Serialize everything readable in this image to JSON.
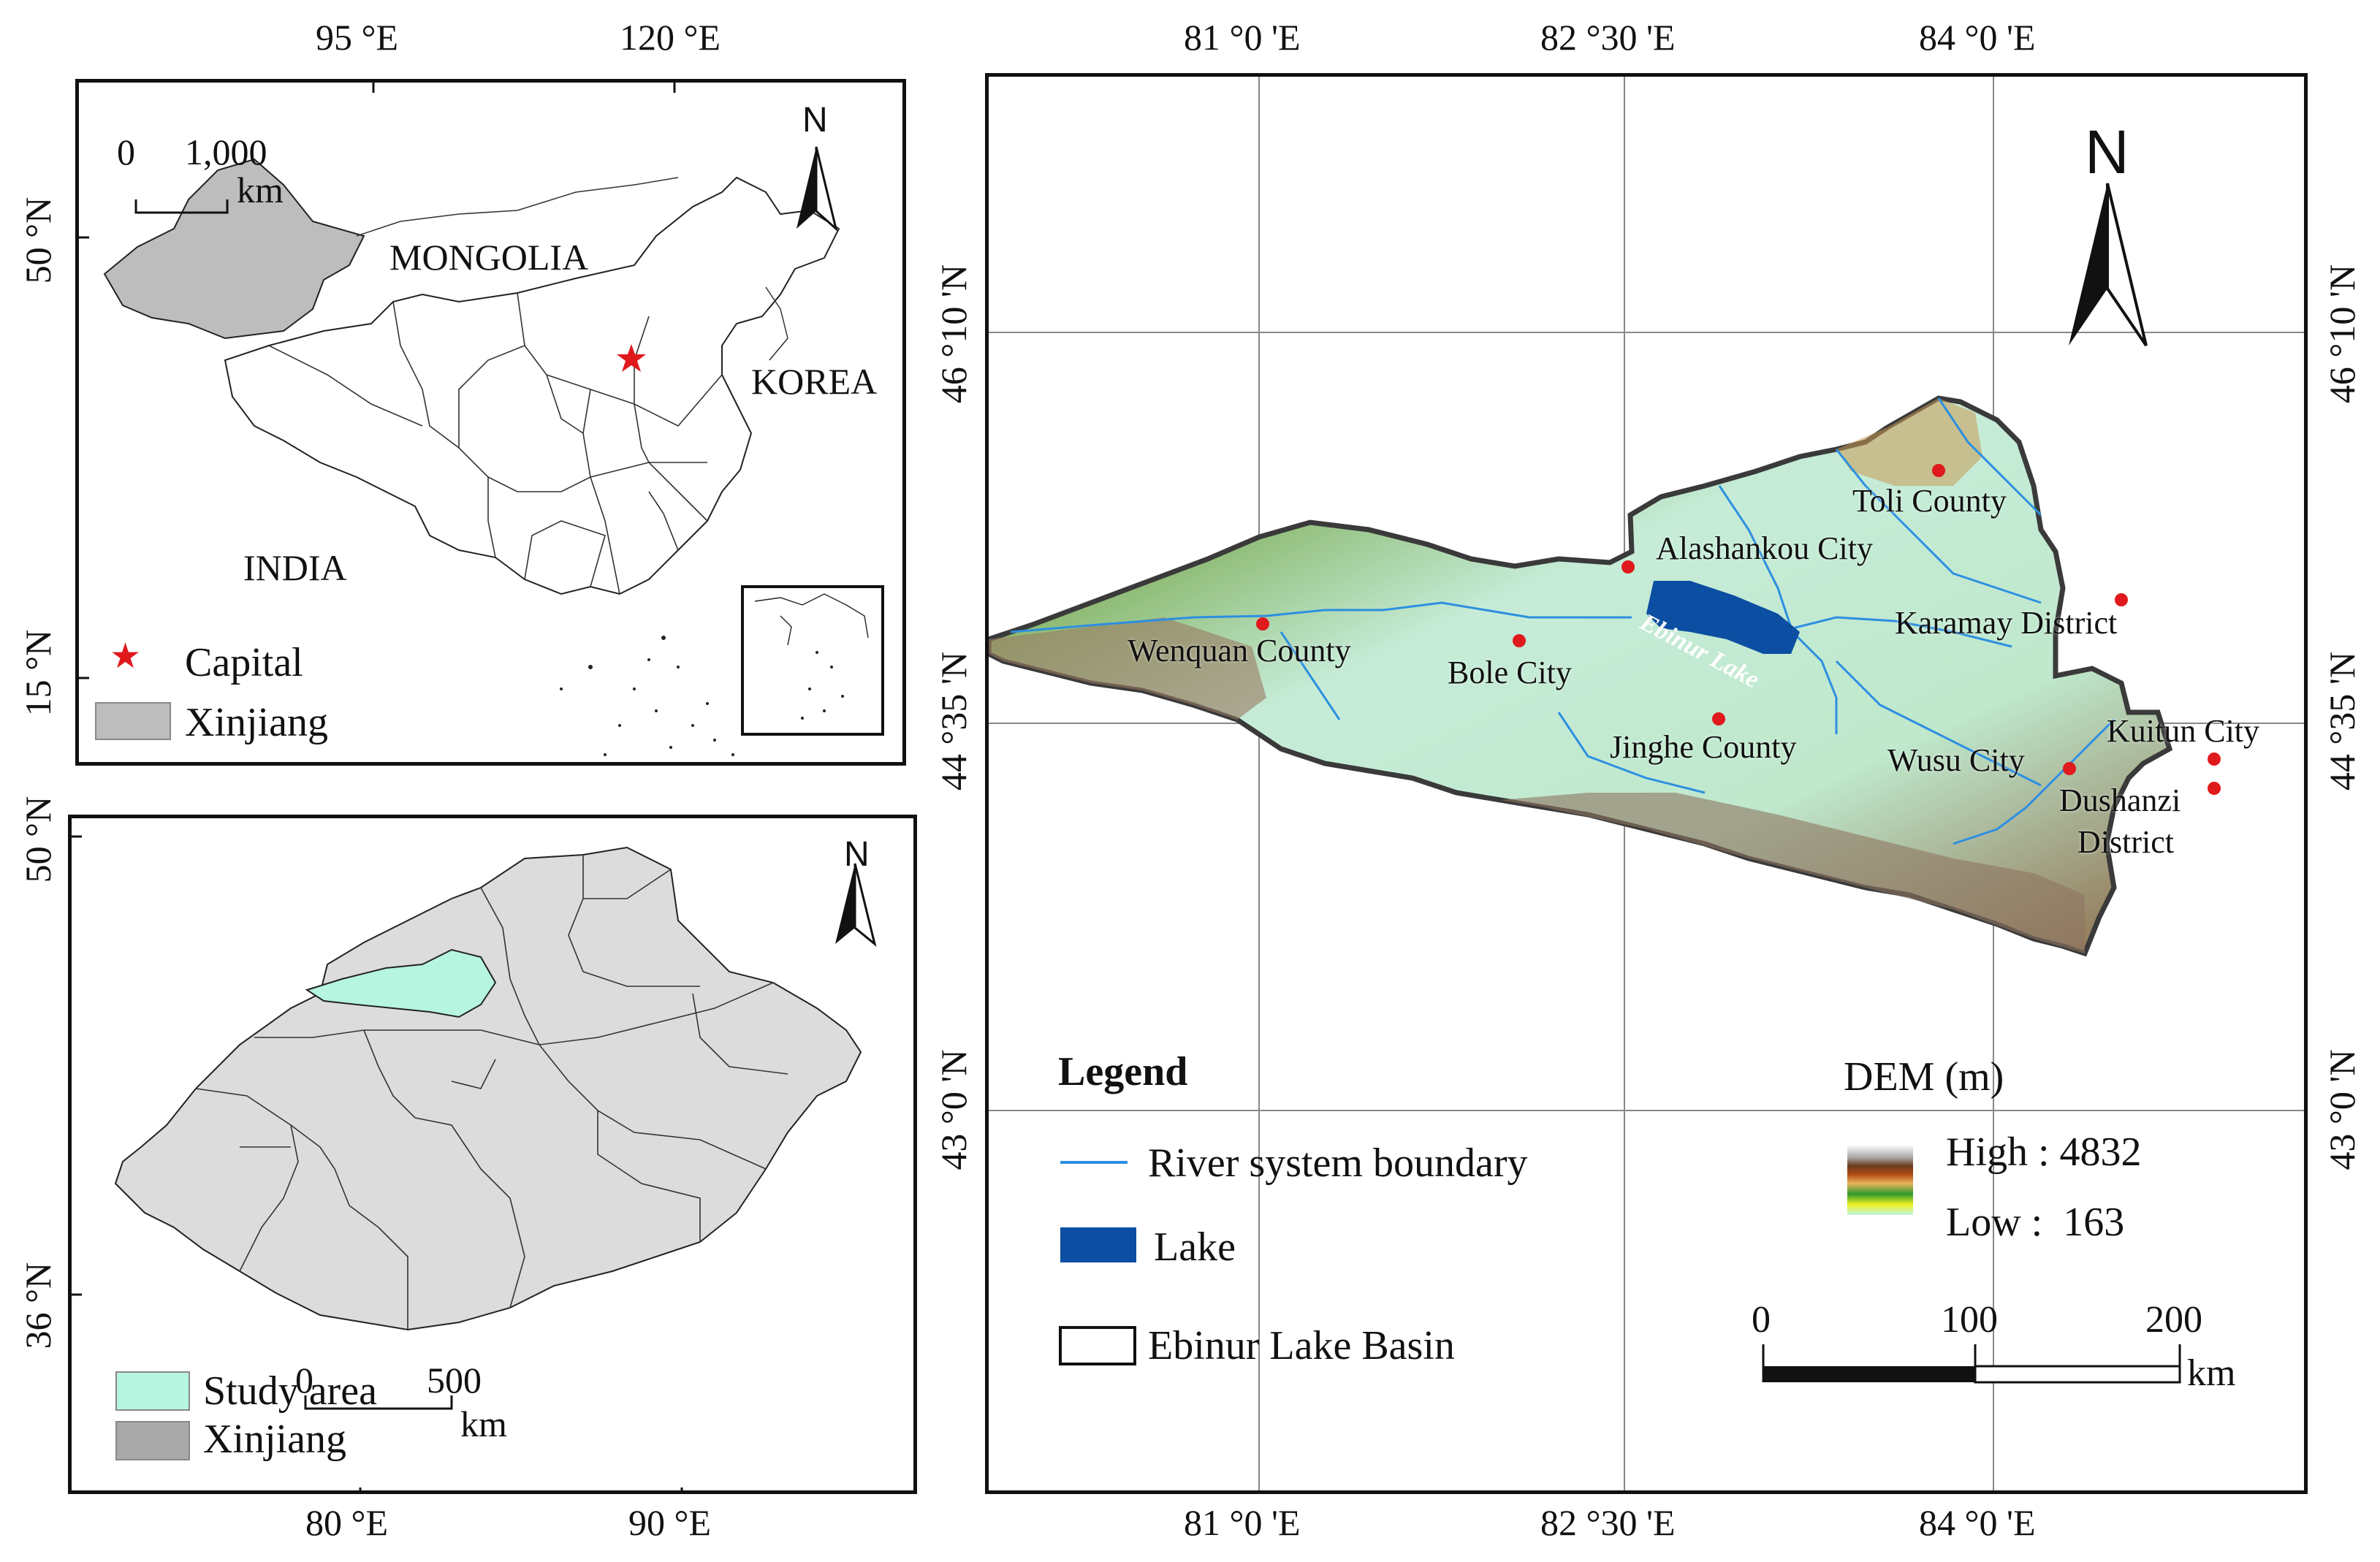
{
  "china_panel": {
    "top_ticks": [
      "95 °E",
      "120 °E"
    ],
    "left_ticks": [
      "50 °N",
      "15 °N"
    ],
    "scale_numbers": [
      "0",
      "1,000"
    ],
    "scale_unit": "km",
    "north": "N",
    "country_labels": [
      "MONGOLIA",
      "KOREA",
      "INDIA"
    ],
    "legend": [
      {
        "symbol": "capital-star",
        "label": "Capital",
        "color": "#e0191c"
      },
      {
        "symbol": "xinjiang-swatch",
        "label": "Xinjiang",
        "color": "#bdbdbd"
      }
    ]
  },
  "xinjiang_panel": {
    "left_ticks": [
      "50 °N",
      "36 °N"
    ],
    "bottom_ticks": [
      "80 °E",
      "90 °E"
    ],
    "north": "N",
    "scale_numbers": [
      "0",
      "500"
    ],
    "scale_unit": "km",
    "legend": [
      {
        "label": "Study area",
        "color": "#b6f5df"
      },
      {
        "label": "Xinjiang",
        "color": "#a9a9a9"
      }
    ]
  },
  "main_map": {
    "top_ticks": [
      "81 °0 'E",
      "82 °30 'E",
      "84 °0 'E"
    ],
    "bottom_ticks": [
      "81 °0 'E",
      "82 °30 'E",
      "84 °0 'E"
    ],
    "left_ticks": [
      "46 °10 'N",
      "44 °35 'N",
      "43 °0 'N"
    ],
    "right_ticks": [
      "46 °10 'N",
      "44 °35 'N",
      "43 °0 'N"
    ],
    "north": "N",
    "lake_name": "Ebinur Lake",
    "places": [
      "Toli County",
      "Alashankou City",
      "Karamay District",
      "Wenquan County",
      "Bole City",
      "Jinghe County",
      "Wusu City",
      "Kuitun City",
      "Dushanzi",
      "District"
    ],
    "legend": {
      "title": "Legend",
      "items": [
        {
          "symbol": "river-line",
          "label": "River system boundary",
          "color": "#2d8fe0"
        },
        {
          "symbol": "lake-swatch",
          "label": "Lake",
          "color": "#0b4ea2"
        },
        {
          "symbol": "basin-outline",
          "label": "Ebinur Lake Basin"
        }
      ]
    },
    "dem": {
      "title": "DEM (m)",
      "high": "High : 4832",
      "low": "Low :  163"
    },
    "scale": {
      "numbers": [
        "0",
        "100",
        "200"
      ],
      "unit": "km"
    }
  }
}
